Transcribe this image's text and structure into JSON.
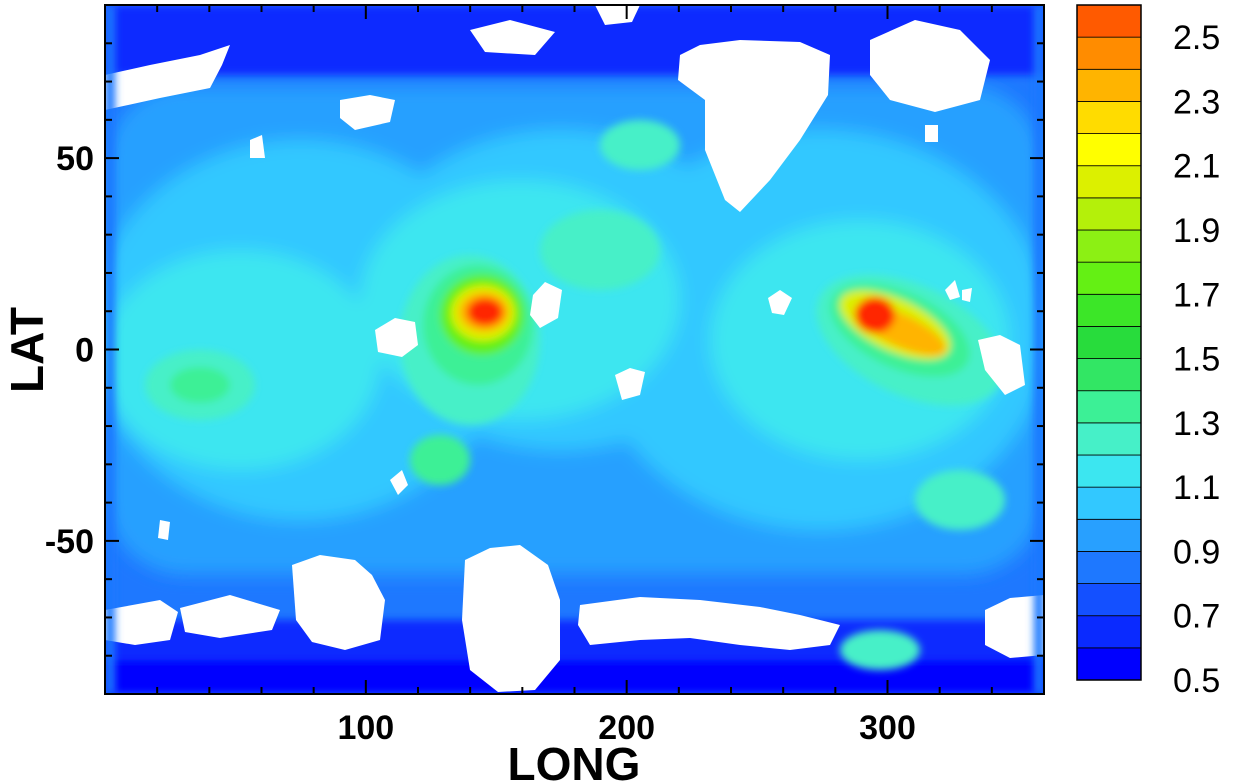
{
  "chart_data": {
    "type": "heatmap",
    "title": "",
    "xlabel": "LONG",
    "ylabel": "LAT",
    "xlim": [
      0,
      360
    ],
    "ylim": [
      -90,
      90
    ],
    "x_ticks": [
      100,
      200,
      300
    ],
    "y_ticks": [
      50,
      0,
      -50
    ],
    "x_tick_labels": [
      "100",
      "200",
      "300"
    ],
    "y_tick_labels": [
      "50",
      "0",
      "-50"
    ],
    "colorbar": {
      "placement": "right",
      "range": [
        0.5,
        2.6
      ],
      "labels": [
        "2.5",
        "2.3",
        "2.1",
        "1.9",
        "1.7",
        "1.5",
        "1.3",
        "1.1",
        "0.9",
        "0.7",
        "0.5"
      ],
      "levels": [
        0.5,
        0.6,
        0.7,
        0.8,
        0.9,
        1.0,
        1.1,
        1.2,
        1.3,
        1.4,
        1.5,
        1.6,
        1.7,
        1.8,
        1.9,
        2.0,
        2.1,
        2.2,
        2.3,
        2.4,
        2.5,
        2.6
      ],
      "colors": [
        "#0000ff",
        "#0a2aff",
        "#1450ff",
        "#1e78ff",
        "#28a0ff",
        "#32c8ff",
        "#3ce6f0",
        "#46f0c8",
        "#3cf096",
        "#32e664",
        "#28dc3c",
        "#3ce628",
        "#64f014",
        "#8cf014",
        "#b4f00a",
        "#dcf000",
        "#ffff00",
        "#ffdc00",
        "#ffb400",
        "#ff8c00",
        "#ff5a00",
        "#ff2800"
      ]
    },
    "features": [
      {
        "name": "maximum",
        "lon": 148,
        "lat": 10,
        "value": 2.6
      },
      {
        "name": "maximum",
        "lon": 292,
        "lat": 10,
        "value": 2.6
      },
      {
        "name": "secondary",
        "lon": 312,
        "lat": 4,
        "value": 2.3
      },
      {
        "name": "secondary",
        "lon": 38,
        "lat": -10,
        "value": 1.6
      },
      {
        "name": "secondary",
        "lon": 132,
        "lat": -28,
        "value": 1.4
      }
    ],
    "grid": false,
    "no_data": "white"
  }
}
